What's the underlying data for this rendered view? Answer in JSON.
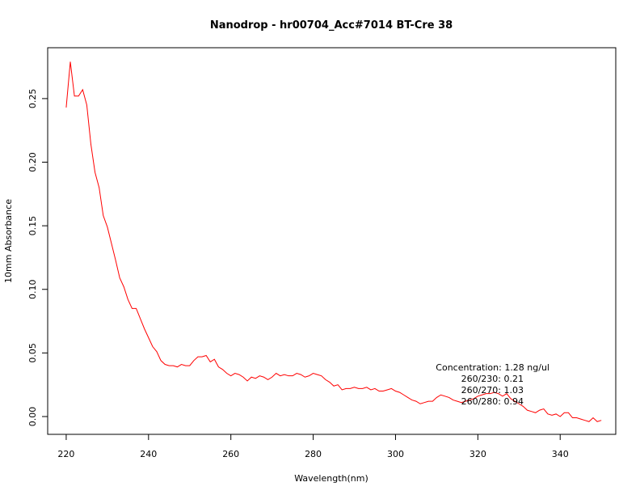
{
  "chart_data": {
    "type": "line",
    "title": "Nanodrop - hr00704_Acc#7014 BT-Cre 38",
    "xlabel": "Wavelength(nm)",
    "ylabel": "10mm Absorbance",
    "xlim": [
      215.5,
      353.5
    ],
    "ylim": [
      -0.014,
      0.29
    ],
    "x_ticks": [
      220,
      240,
      260,
      280,
      300,
      320,
      340
    ],
    "y_ticks": [
      0.0,
      0.05,
      0.1,
      0.15,
      0.2,
      0.25
    ],
    "x_tick_labels": [
      "220",
      "240",
      "260",
      "280",
      "300",
      "320",
      "340"
    ],
    "y_tick_labels": [
      "0.00",
      "0.05",
      "0.10",
      "0.15",
      "0.20",
      "0.25"
    ],
    "grid": false,
    "series": [
      {
        "color": "#ff0000",
        "x": [
          220,
          221,
          222,
          223,
          224,
          225,
          226,
          227,
          228,
          229,
          230,
          231,
          232,
          233,
          234,
          235,
          236,
          237,
          238,
          239,
          240,
          241,
          242,
          243,
          244,
          245,
          246,
          247,
          248,
          249,
          250,
          251,
          252,
          253,
          254,
          255,
          256,
          257,
          258,
          259,
          260,
          261,
          262,
          263,
          264,
          265,
          266,
          267,
          268,
          269,
          270,
          271,
          272,
          273,
          274,
          275,
          276,
          277,
          278,
          279,
          280,
          281,
          282,
          283,
          284,
          285,
          286,
          287,
          288,
          289,
          290,
          291,
          292,
          293,
          294,
          295,
          296,
          297,
          298,
          299,
          300,
          301,
          302,
          303,
          304,
          305,
          306,
          307,
          308,
          309,
          310,
          311,
          312,
          313,
          314,
          315,
          316,
          317,
          318,
          319,
          320,
          321,
          322,
          323,
          324,
          325,
          326,
          327,
          328,
          329,
          330,
          331,
          332,
          333,
          334,
          335,
          336,
          337,
          338,
          339,
          340,
          341,
          342,
          343,
          344,
          345,
          346,
          347,
          348,
          349,
          350
        ],
        "y": [
          0.243,
          0.279,
          0.252,
          0.252,
          0.257,
          0.245,
          0.214,
          0.192,
          0.18,
          0.158,
          0.149,
          0.136,
          0.123,
          0.109,
          0.102,
          0.092,
          0.085,
          0.085,
          0.077,
          0.069,
          0.062,
          0.055,
          0.051,
          0.044,
          0.041,
          0.04,
          0.04,
          0.039,
          0.041,
          0.04,
          0.04,
          0.044,
          0.047,
          0.047,
          0.048,
          0.043,
          0.045,
          0.039,
          0.037,
          0.034,
          0.032,
          0.034,
          0.033,
          0.031,
          0.028,
          0.031,
          0.03,
          0.032,
          0.031,
          0.029,
          0.031,
          0.034,
          0.032,
          0.033,
          0.032,
          0.032,
          0.034,
          0.033,
          0.031,
          0.032,
          0.034,
          0.033,
          0.032,
          0.029,
          0.027,
          0.024,
          0.025,
          0.021,
          0.022,
          0.022,
          0.023,
          0.022,
          0.022,
          0.023,
          0.021,
          0.022,
          0.02,
          0.02,
          0.021,
          0.022,
          0.02,
          0.019,
          0.017,
          0.015,
          0.013,
          0.012,
          0.01,
          0.011,
          0.012,
          0.012,
          0.015,
          0.017,
          0.016,
          0.015,
          0.013,
          0.012,
          0.011,
          0.012,
          0.013,
          0.014,
          0.016,
          0.017,
          0.018,
          0.018,
          0.019,
          0.018,
          0.016,
          0.018,
          0.014,
          0.012,
          0.01,
          0.008,
          0.005,
          0.004,
          0.003,
          0.005,
          0.006,
          0.002,
          0.001,
          0.002,
          0.0,
          0.003,
          0.003,
          -0.001,
          -0.001,
          -0.002,
          -0.003,
          -0.004,
          -0.001,
          -0.004,
          -0.003
        ]
      }
    ],
    "annotations": [
      "Concentration: 1.28 ng/ul",
      "260/230: 0.21",
      "260/270: 1.03",
      "260/280: 0.94"
    ]
  }
}
